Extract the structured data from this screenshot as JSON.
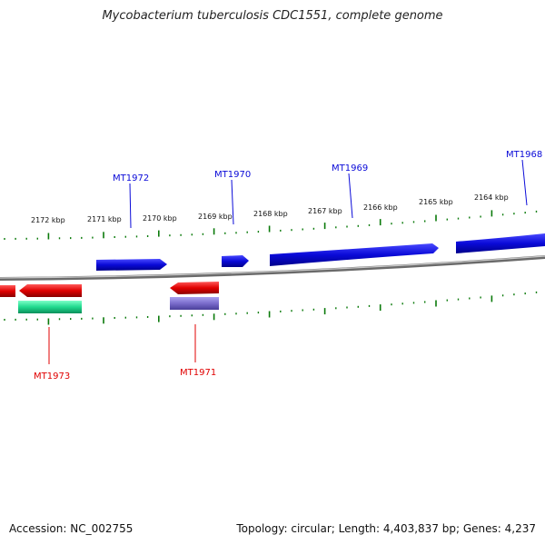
{
  "title": "Mycobacterium tuberculosis CDC1551, complete genome",
  "footer": {
    "accession": "Accession: NC_002755",
    "summary": "Topology: circular; Length: 4,403,837 bp; Genes: 4,237"
  },
  "colors": {
    "forward": "#0a0ad8",
    "reverse": "#e00000",
    "rna": "#1fd98e",
    "other": "#7a6ccc",
    "tick": "#0a7a0a",
    "backbone": "#7f7f7f"
  },
  "ticks": [
    {
      "label": "2172 kbp"
    },
    {
      "label": "2171 kbp"
    },
    {
      "label": "2170 kbp"
    },
    {
      "label": "2169 kbp"
    },
    {
      "label": "2168 kbp"
    },
    {
      "label": "2167 kbp"
    },
    {
      "label": "2166 kbp"
    },
    {
      "label": "2165 kbp"
    },
    {
      "label": "2164 kbp"
    }
  ],
  "genes": [
    {
      "name": "MT1968",
      "strand": "forward"
    },
    {
      "name": "MT1969",
      "strand": "forward"
    },
    {
      "name": "MT1970",
      "strand": "forward"
    },
    {
      "name": "MT1971",
      "strand": "reverse"
    },
    {
      "name": "MT1972",
      "strand": "forward"
    },
    {
      "name": "MT1973",
      "strand": "reverse"
    }
  ]
}
